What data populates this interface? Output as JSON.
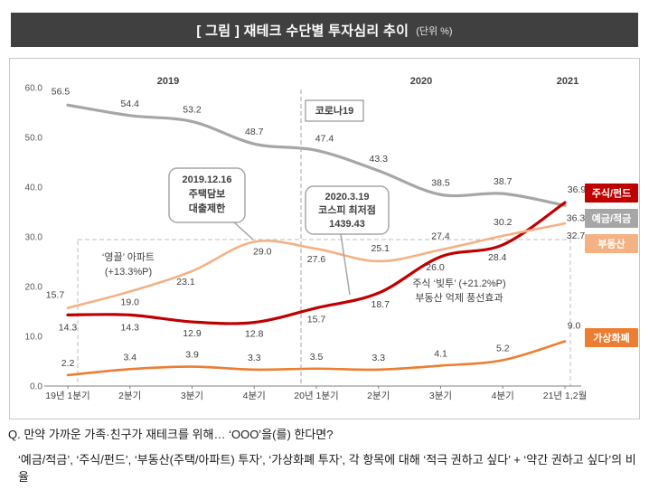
{
  "title": {
    "main": "[ 그림 ] 재테크 수단별 투자심리 추이",
    "unit": "(단위 %)"
  },
  "chart_data": {
    "type": "line",
    "title": "재테크 수단별 투자심리 추이",
    "unit": "%",
    "legend_position": "right",
    "grid": false,
    "ylim": [
      0,
      60
    ],
    "y_ticks": [
      "0.0",
      "10.0",
      "20.0",
      "30.0",
      "40.0",
      "50.0",
      "60.0"
    ],
    "categories": [
      "19년 1분기",
      "2분기",
      "3분기",
      "4분기",
      "20년 1분기",
      "2분기",
      "3분기",
      "4분기",
      "21년 1,2월"
    ],
    "year_labels": [
      "2019",
      "2020",
      "2021"
    ],
    "series": [
      {
        "name": "예금/적금",
        "color": "#a6a6a6",
        "values": [
          56.5,
          54.4,
          53.2,
          48.7,
          47.4,
          43.3,
          38.5,
          38.7,
          36.3
        ]
      },
      {
        "name": "주식/펀드",
        "color": "#c00000",
        "values": [
          14.3,
          14.3,
          12.9,
          12.8,
          15.7,
          18.7,
          26.0,
          28.4,
          36.9
        ]
      },
      {
        "name": "부동산",
        "color": "#f4b183",
        "values": [
          15.7,
          19.0,
          23.1,
          29.0,
          27.6,
          25.1,
          27.4,
          30.2,
          32.7
        ]
      },
      {
        "name": "가상화폐",
        "color": "#ed7d31",
        "values": [
          2.2,
          3.4,
          3.9,
          3.3,
          3.5,
          3.3,
          4.1,
          5.2,
          9.0
        ]
      }
    ],
    "annotations": {
      "covid_label": "코로나19",
      "callout1": [
        "2019.12.16",
        "주택담보",
        "대출제한"
      ],
      "callout2": [
        "2020.3.19",
        "코스피 최저점",
        "1439.43"
      ],
      "note_left": [
        "‘영끌’ 아파트",
        "(+13.3%P)"
      ],
      "note_right": [
        "주식 ‘빚투’ (+21.2%P)",
        "부동산 억제 풍선효과"
      ]
    }
  },
  "footnote": {
    "line1": "Q. 만약 가까운 가족·친구가 재테크를 위해… ‘OOO’을(를) 한다면?",
    "line2": "‘예금/적금’, ‘주식/펀드’, ‘부동산(주택/아파트) 투자’, ‘가상화폐 투자’, 각 항목에 대해 ‘적극 권하고 싶다’ + ‘약간 권하고 싶다’의 비율"
  }
}
